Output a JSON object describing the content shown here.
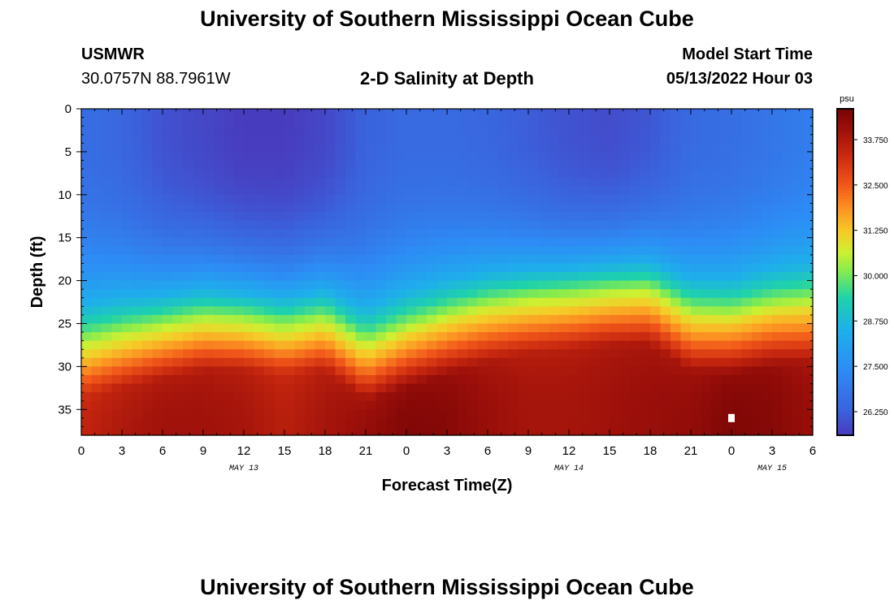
{
  "header": {
    "title": "University of Southern Mississippi Ocean Cube",
    "station": "USMWR",
    "coords": "30.0757N  88.7961W",
    "product": "2-D Salinity at Depth",
    "model_label": "Model Start Time",
    "model_time": "05/13/2022 Hour 03"
  },
  "footer": {
    "title": "University of Southern Mississippi Ocean Cube"
  },
  "chart_data": {
    "type": "heatmap",
    "title": "2-D Salinity at Depth",
    "xlabel": "Forecast Time(Z)",
    "ylabel": "Depth (ft)",
    "x_tick_labels": [
      "0",
      "3",
      "6",
      "9",
      "12",
      "15",
      "18",
      "21",
      "0",
      "3",
      "6",
      "9",
      "12",
      "15",
      "18",
      "21",
      "0",
      "3",
      "6"
    ],
    "x_hours": [
      0,
      3,
      6,
      9,
      12,
      15,
      18,
      21,
      24,
      27,
      30,
      33,
      36,
      39,
      42,
      45,
      48,
      51,
      54
    ],
    "date_labels": [
      {
        "label": "MAY 13",
        "hour": 12
      },
      {
        "label": "MAY 14",
        "hour": 36
      },
      {
        "label": "MAY 15",
        "hour": 51
      }
    ],
    "y_ticks": [
      0,
      5,
      10,
      15,
      20,
      25,
      30,
      35
    ],
    "ylim": [
      0,
      38
    ],
    "xlim": [
      0,
      54
    ],
    "colorbar": {
      "unit": "psu",
      "ticks": [
        "26.250",
        "27.500",
        "28.750",
        "30.000",
        "31.250",
        "32.500",
        "33.750"
      ],
      "range": [
        25.6,
        34.6
      ]
    },
    "columns": [
      {
        "hour": 0,
        "top": 26.6,
        "thermocline_depth": 27.5,
        "bottom": 33.5
      },
      {
        "hour": 3,
        "top": 26.4,
        "thermocline_depth": 26.5,
        "bottom": 33.8
      },
      {
        "hour": 6,
        "top": 26.0,
        "thermocline_depth": 25.5,
        "bottom": 34.0
      },
      {
        "hour": 9,
        "top": 25.8,
        "thermocline_depth": 24.5,
        "bottom": 34.0
      },
      {
        "hour": 12,
        "top": 25.6,
        "thermocline_depth": 24.5,
        "bottom": 33.9
      },
      {
        "hour": 15,
        "top": 25.6,
        "thermocline_depth": 25.0,
        "bottom": 33.6
      },
      {
        "hour": 18,
        "top": 25.8,
        "thermocline_depth": 24.5,
        "bottom": 33.9
      },
      {
        "hour": 21,
        "top": 26.3,
        "thermocline_depth": 28.0,
        "bottom": 34.2
      },
      {
        "hour": 24,
        "top": 26.5,
        "thermocline_depth": 26.5,
        "bottom": 34.5
      },
      {
        "hour": 27,
        "top": 26.5,
        "thermocline_depth": 25.0,
        "bottom": 34.4
      },
      {
        "hour": 30,
        "top": 26.4,
        "thermocline_depth": 23.5,
        "bottom": 34.1
      },
      {
        "hour": 33,
        "top": 26.2,
        "thermocline_depth": 22.5,
        "bottom": 33.9
      },
      {
        "hour": 36,
        "top": 26.0,
        "thermocline_depth": 22.0,
        "bottom": 33.9
      },
      {
        "hour": 39,
        "top": 25.9,
        "thermocline_depth": 21.5,
        "bottom": 34.0
      },
      {
        "hour": 42,
        "top": 26.1,
        "thermocline_depth": 21.5,
        "bottom": 34.1
      },
      {
        "hour": 45,
        "top": 26.5,
        "thermocline_depth": 24.5,
        "bottom": 34.2
      },
      {
        "hour": 48,
        "top": 26.6,
        "thermocline_depth": 25.0,
        "bottom": 34.5
      },
      {
        "hour": 51,
        "top": 26.8,
        "thermocline_depth": 24.0,
        "bottom": 34.4
      },
      {
        "hour": 54,
        "top": 27.0,
        "thermocline_depth": 23.5,
        "bottom": 34.1
      }
    ]
  }
}
